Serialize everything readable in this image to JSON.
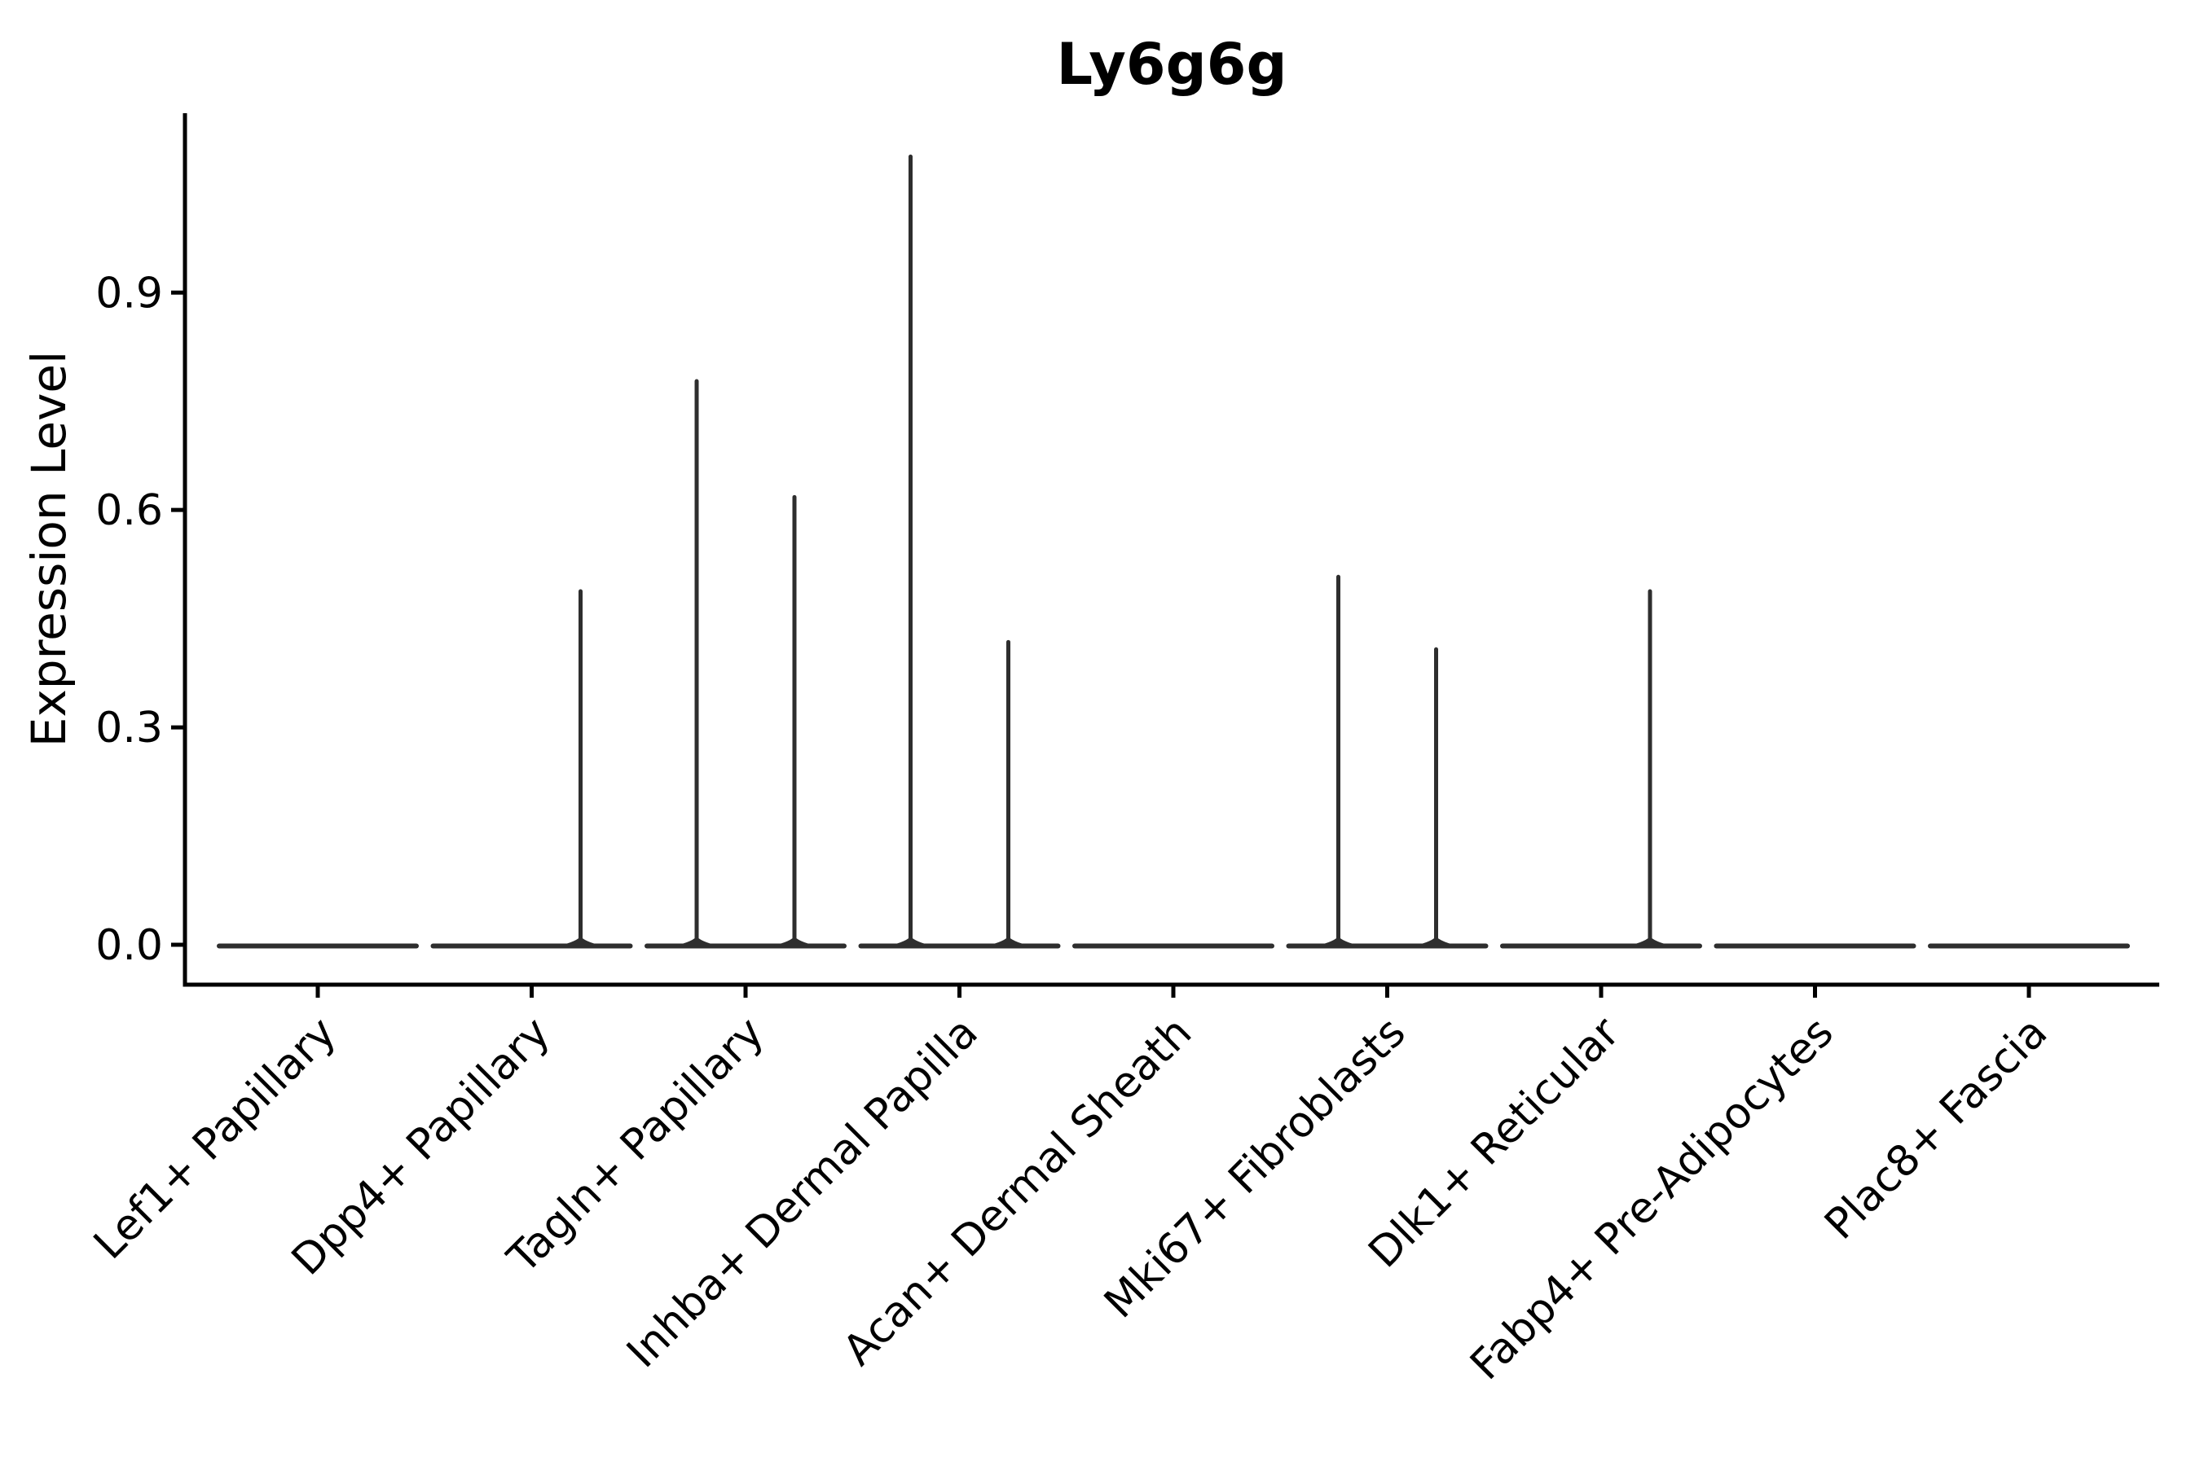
{
  "figure": {
    "background": "#ffffff",
    "axis_color": "#000000",
    "violin_color": "#2e2e2e",
    "text_color": "#000000"
  },
  "chart_data": {
    "type": "violin",
    "title": "Ly6g6g",
    "xlabel": "",
    "ylabel": "Expression Level",
    "ylim": [
      -0.055,
      1.148
    ],
    "yticks": [
      0.0,
      0.3,
      0.6,
      0.9
    ],
    "ytick_labels": [
      "0.0",
      "0.3",
      "0.6",
      "0.9"
    ],
    "grid": false,
    "legend": "none",
    "categories": [
      "Lef1+ Papillary",
      "Dpp4+ Papillary",
      "Tagln+ Papillary",
      "Inhba+ Dermal Papilla",
      "Acan+ Dermal Sheath",
      "Mki67+ Fibroblasts",
      "Dlk1+ Reticular",
      "Fabp4+ Pre-Adipocytes",
      "Plac8+ Fascia"
    ],
    "series": [
      {
        "category": "Lef1+ Papillary",
        "baseline_value": 0.0,
        "spikes": []
      },
      {
        "category": "Dpp4+ Papillary",
        "baseline_value": 0.0,
        "spikes": [
          {
            "side": "right",
            "value": 0.49
          }
        ]
      },
      {
        "category": "Tagln+ Papillary",
        "baseline_value": 0.0,
        "spikes": [
          {
            "side": "left",
            "value": 0.78
          },
          {
            "side": "right",
            "value": 0.62
          }
        ]
      },
      {
        "category": "Inhba+ Dermal Papilla",
        "baseline_value": 0.0,
        "spikes": [
          {
            "side": "left",
            "value": 1.09
          },
          {
            "side": "right",
            "value": 0.42
          }
        ]
      },
      {
        "category": "Acan+ Dermal Sheath",
        "baseline_value": 0.0,
        "spikes": []
      },
      {
        "category": "Mki67+ Fibroblasts",
        "baseline_value": 0.0,
        "spikes": [
          {
            "side": "left",
            "value": 0.51
          },
          {
            "side": "right",
            "value": 0.41
          }
        ]
      },
      {
        "category": "Dlk1+ Reticular",
        "baseline_value": 0.0,
        "spikes": [
          {
            "side": "right",
            "value": 0.49
          }
        ]
      },
      {
        "category": "Fabp4+ Pre-Adipocytes",
        "baseline_value": 0.0,
        "spikes": []
      },
      {
        "category": "Plac8+ Fascia",
        "baseline_value": 0.0,
        "spikes": []
      }
    ]
  }
}
